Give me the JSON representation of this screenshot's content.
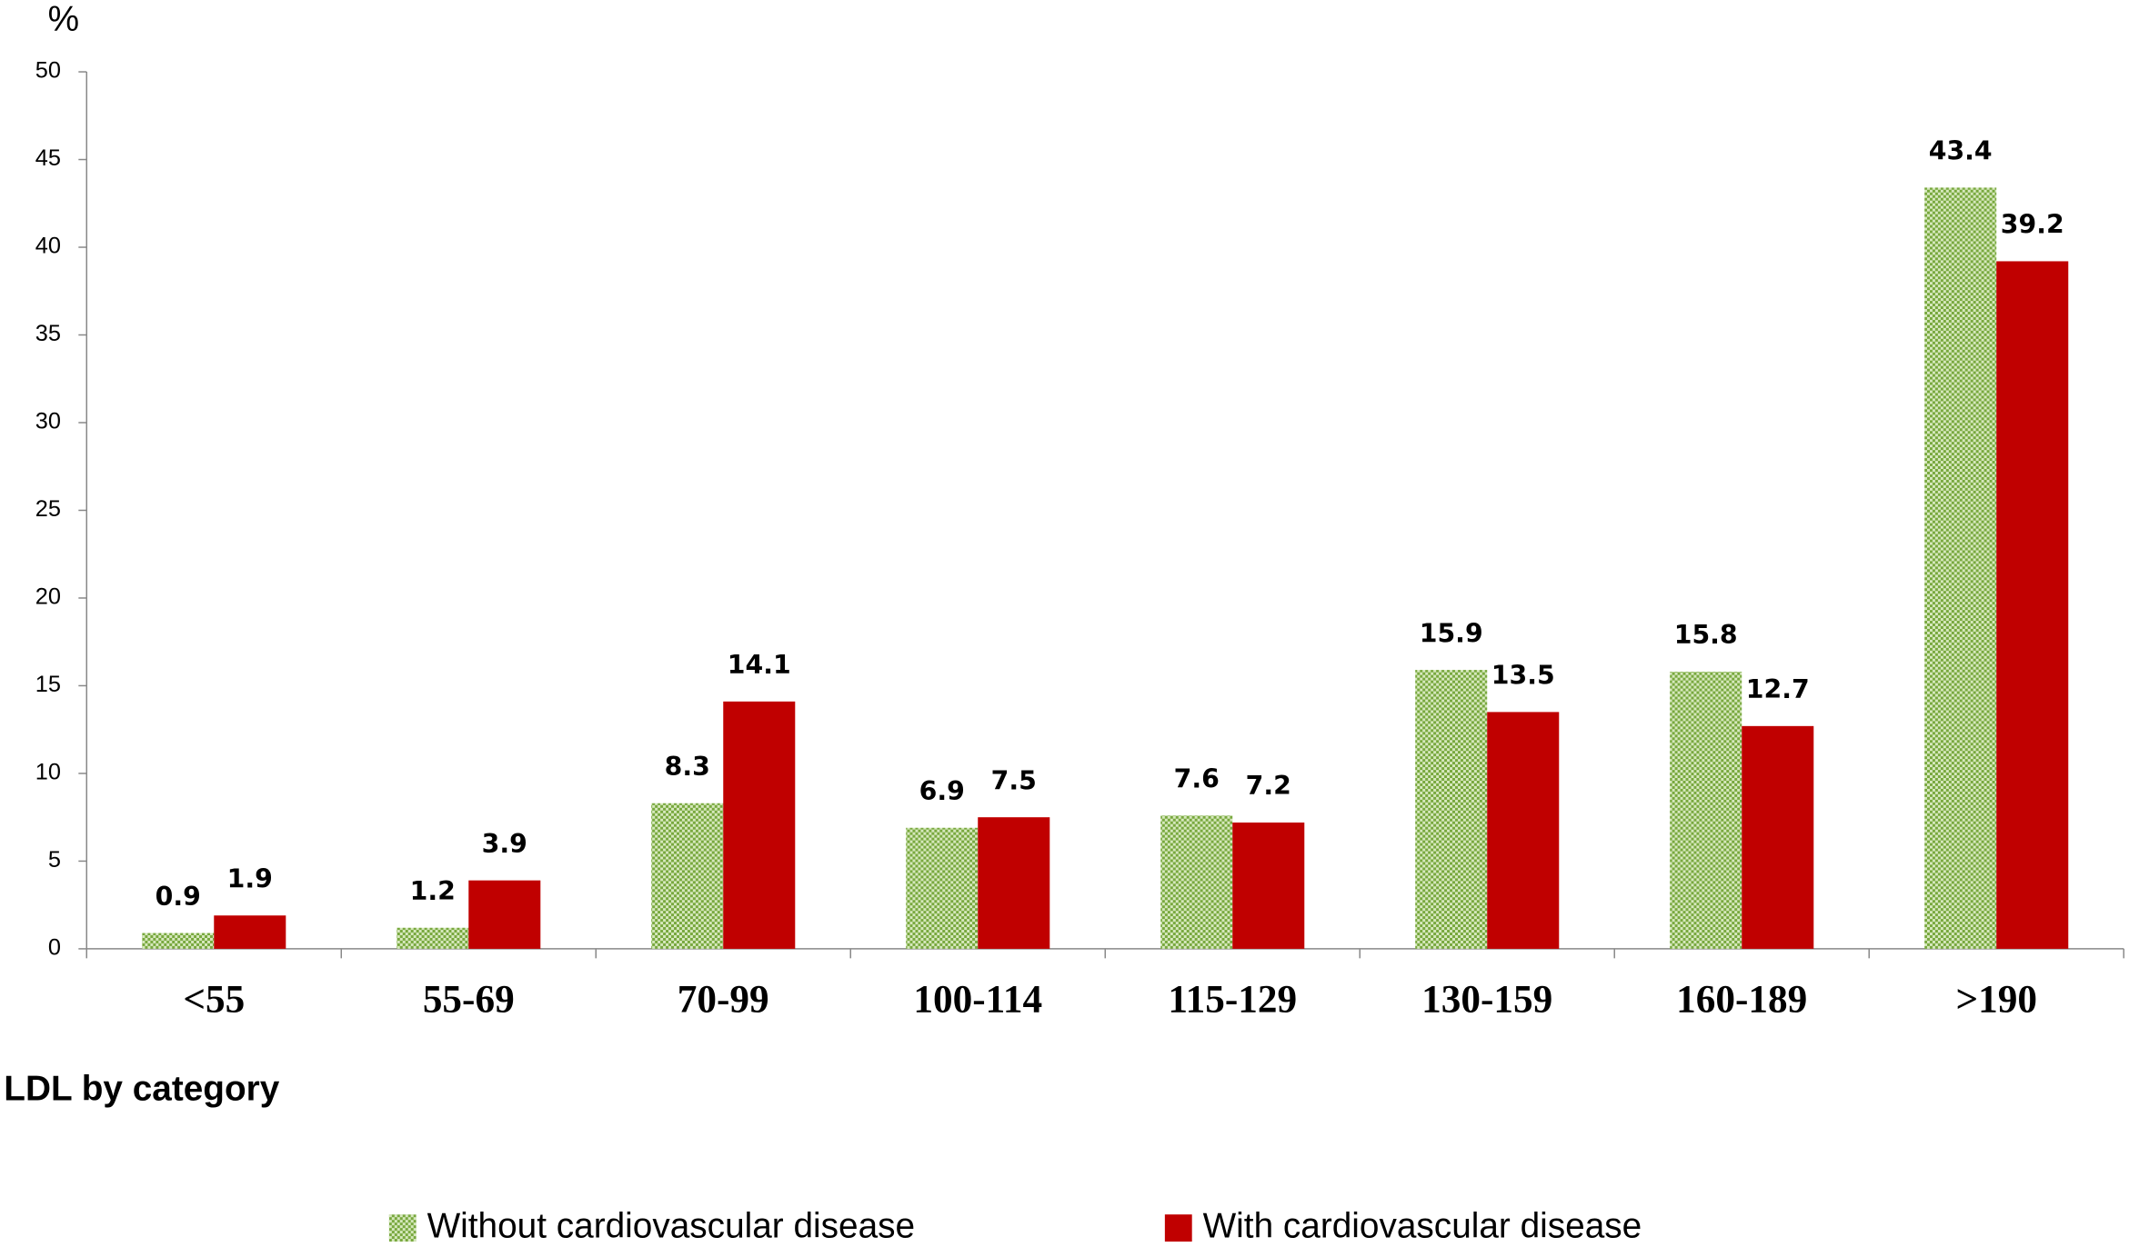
{
  "chart_data": {
    "type": "bar",
    "y_label": "%",
    "x_label": "LDL by category",
    "categories": [
      "<55",
      "55-69",
      "70-99",
      "100-114",
      "115-129",
      "130-159",
      "160-189",
      ">190"
    ],
    "series": [
      {
        "name": "Without cardiovascular disease",
        "color": "#78a83e",
        "values": [
          0.9,
          1.2,
          8.3,
          6.9,
          7.6,
          15.9,
          15.8,
          43.4
        ]
      },
      {
        "name": "With cardiovascular disease",
        "color": "#c00000",
        "values": [
          1.9,
          3.9,
          14.1,
          7.5,
          7.2,
          13.5,
          12.7,
          39.2
        ]
      }
    ],
    "ylim": [
      0,
      50
    ],
    "yticks": [
      0,
      5,
      10,
      15,
      20,
      25,
      30,
      35,
      40,
      45,
      50
    ]
  }
}
